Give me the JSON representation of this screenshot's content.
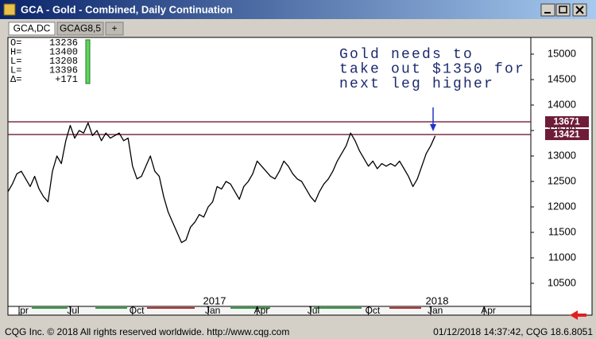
{
  "window": {
    "title": "GCA - Gold - Combined, Daily Continuation"
  },
  "tabs": [
    "GCA,DC",
    "GCAG8,5",
    "+"
  ],
  "quote": [
    {
      "key": "O=",
      "value": 13236
    },
    {
      "key": "H=",
      "value": 13400
    },
    {
      "key": "L=",
      "value": 13208
    },
    {
      "key": "L=",
      "value": 13396
    },
    {
      "key": "Δ=",
      "value": "+171"
    }
  ],
  "chart_data": {
    "type": "line",
    "annotation": [
      "Gold needs to",
      "take out $1350 for",
      "next leg higher"
    ],
    "categories": [
      null,
      null,
      "Apr",
      null,
      null,
      null,
      null,
      null,
      null,
      null,
      null,
      null,
      null,
      null,
      "Jul",
      null,
      null,
      null,
      null,
      null,
      null,
      null,
      null,
      null,
      null,
      null,
      null,
      null,
      "Oct",
      null,
      null,
      null,
      null,
      null,
      null,
      null,
      null,
      null,
      null,
      null,
      null,
      null,
      null,
      null,
      null,
      "Jan",
      null,
      null,
      null,
      null,
      null,
      null,
      null,
      null,
      null,
      null,
      "Apr",
      null,
      null,
      null,
      null,
      null,
      null,
      null,
      null,
      null,
      null,
      null,
      "Jul",
      null,
      null,
      null,
      null,
      null,
      null,
      null,
      null,
      null,
      null,
      null,
      null,
      "Oct",
      null,
      null,
      null,
      null,
      null,
      null,
      null,
      null,
      null,
      null,
      null,
      null,
      null,
      "Jan",
      null,
      null,
      null,
      null,
      null,
      null,
      null,
      null,
      null,
      null,
      null,
      "Apr",
      null,
      null,
      null,
      null,
      null,
      null,
      null,
      null,
      null,
      null
    ],
    "year_labels": [
      "2017",
      "2018"
    ],
    "values": [
      12300,
      12450,
      12650,
      12700,
      12550,
      12400,
      12600,
      12350,
      12200,
      12100,
      12700,
      13000,
      12850,
      13300,
      13600,
      13350,
      13500,
      13450,
      13650,
      13400,
      13500,
      13300,
      13450,
      13350,
      13400,
      13450,
      13300,
      13350,
      12800,
      12550,
      12600,
      12800,
      13000,
      12700,
      12600,
      12200,
      11900,
      11700,
      11500,
      11300,
      11350,
      11600,
      11700,
      11850,
      11800,
      12000,
      12100,
      12400,
      12350,
      12500,
      12450,
      12300,
      12150,
      12400,
      12500,
      12650,
      12900,
      12800,
      12700,
      12600,
      12550,
      12700,
      12900,
      12800,
      12650,
      12550,
      12500,
      12350,
      12200,
      12100,
      12300,
      12450,
      12550,
      12700,
      12900,
      13050,
      13200,
      13450,
      13300,
      13100,
      12950,
      12800,
      12900,
      12750,
      12850,
      12800,
      12850,
      12800,
      12900,
      12750,
      12600,
      12400,
      12550,
      12800,
      13050,
      13200,
      13396,
      null,
      null,
      null,
      null,
      null,
      null,
      null,
      null,
      null,
      null,
      null,
      null,
      null,
      null,
      null,
      null,
      null,
      null,
      null,
      null,
      null
    ],
    "color": "#000000",
    "ylim": [
      10047,
      15328
    ],
    "yticks": [
      10500,
      11000,
      11500,
      12000,
      12500,
      13000,
      13500,
      14000,
      14500,
      15000
    ],
    "grid": false,
    "levels": [
      13671,
      13421
    ],
    "level_color": "#6e1c38"
  },
  "footer": {
    "left": "CQG Inc. © 2018 All rights reserved worldwide. http://www.cqg.com",
    "right": "01/12/2018 14:37:42, CQG 18.6.8051"
  }
}
